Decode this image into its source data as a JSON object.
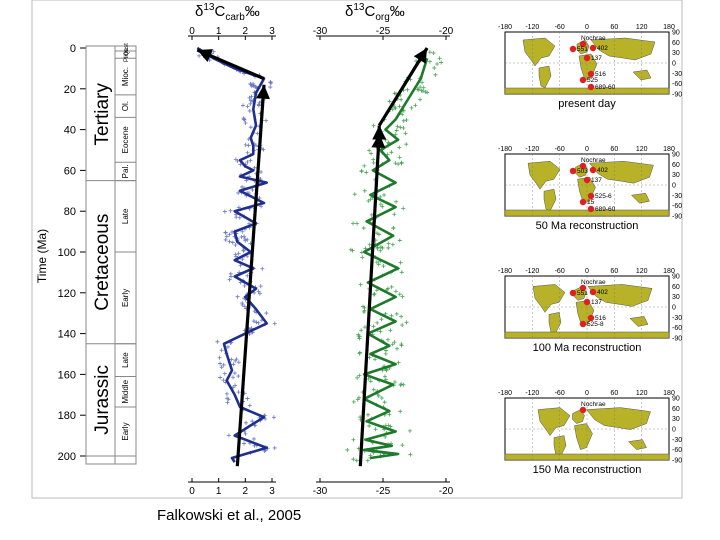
{
  "citation": "Falkowski et al., 2005",
  "colors": {
    "carb_line": "#1f2f8f",
    "carb_points": "#6a78c8",
    "org_line": "#1d7a2a",
    "org_points": "#49a455",
    "land": "#b8b228",
    "site": "#e02020",
    "trend_arrow": "#000000"
  },
  "chart_data": [
    {
      "type": "line",
      "title": "δ13Ccarb‰",
      "title_parts": {
        "delta": "δ",
        "sup": "13",
        "base": "C",
        "sub": "carb",
        "unit": "‰"
      },
      "ylabel": "Time (Ma)",
      "ylim": [
        0,
        200
      ],
      "yticks": [
        0,
        20,
        40,
        60,
        80,
        100,
        120,
        140,
        160,
        180,
        200
      ],
      "xlim": [
        0,
        3
      ],
      "xticks": [
        0,
        1,
        2,
        3
      ],
      "stratigraphy": {
        "eras": [
          {
            "name": "Tertiary",
            "top": 0,
            "base": 65
          },
          {
            "name": "Cretaceous",
            "top": 65,
            "base": 145
          },
          {
            "name": "Jurassic",
            "top": 145,
            "base": 200
          }
        ],
        "epochs": [
          {
            "name": "Qest",
            "top": 0,
            "base": 1.5
          },
          {
            "name": "Plioc.",
            "top": 1.5,
            "base": 5
          },
          {
            "name": "Mioc.",
            "top": 5,
            "base": 23
          },
          {
            "name": "Ol.",
            "top": 23,
            "base": 34
          },
          {
            "name": "Eocene",
            "top": 34,
            "base": 56
          },
          {
            "name": "Pal.",
            "top": 56,
            "base": 65
          },
          {
            "name": "Late",
            "top": 65,
            "base": 100
          },
          {
            "name": "Early",
            "top": 100,
            "base": 145
          },
          {
            "name": "Late",
            "top": 145,
            "base": 161
          },
          {
            "name": "Middle",
            "top": 161,
            "base": 176
          },
          {
            "name": "Early",
            "top": 176,
            "base": 200
          }
        ]
      },
      "series": [
        {
          "name": "δ13Ccarb smoothed",
          "x": [
            0.2,
            0.8,
            1.6,
            2.7,
            2.4,
            2.3,
            2.4,
            2.2,
            2.3,
            2.3,
            1.8,
            2.0,
            2.3,
            1.8,
            2.8,
            1.8,
            2.7,
            1.6,
            2.4,
            1.6,
            1.7,
            2.2,
            1.6,
            2.3,
            1.6,
            2.4,
            2.0,
            2.4,
            2.8,
            2.0,
            1.2,
            1.3,
            1.5,
            1.3,
            1.6,
            1.8,
            2.7,
            2.2,
            1.6,
            2.2,
            2.8,
            2.0,
            1.5,
            1.6
          ],
          "y": [
            0,
            5,
            10,
            15,
            22,
            30,
            38,
            44,
            48,
            52,
            55,
            58,
            60,
            63,
            66,
            70,
            76,
            80,
            86,
            90,
            95,
            100,
            104,
            108,
            112,
            118,
            122,
            128,
            135,
            140,
            145,
            150,
            158,
            163,
            170,
            176,
            181,
            185,
            190,
            193,
            196,
            199,
            201,
            203
          ]
        },
        {
          "name": "trend",
          "type": "arrow",
          "x": [
            1.7,
            2.7,
            1.6,
            2.7,
            0.2
          ],
          "y": [
            205,
            18,
            null,
            15,
            1
          ]
        }
      ]
    },
    {
      "type": "line",
      "title": "δ13Corg‰",
      "title_parts": {
        "delta": "δ",
        "sup": "13",
        "base": "C",
        "sub": "org",
        "unit": "‰"
      },
      "ylim": [
        0,
        200
      ],
      "xlim": [
        -30,
        -20
      ],
      "xticks": [
        -30,
        -25,
        -20
      ],
      "series": [
        {
          "name": "δ13Corg smoothed",
          "x": [
            -21.5,
            -22.0,
            -23.0,
            -24.0,
            -24.8,
            -23.8,
            -25.2,
            -24.5,
            -25.8,
            -24.0,
            -26.0,
            -24.0,
            -26.3,
            -24.2,
            -26.5,
            -23.8,
            -26.2,
            -24.0,
            -26.0,
            -24.0,
            -26.2,
            -24.5,
            -26.0,
            -24.0,
            -26.5,
            -24.2,
            -26.5,
            -24.5,
            -26.3,
            -24.0,
            -26.4,
            -24.3,
            -26.5,
            -23.8,
            -26.0
          ],
          "y": [
            5,
            15,
            25,
            35,
            40,
            45,
            50,
            55,
            60,
            66,
            72,
            78,
            85,
            92,
            100,
            108,
            115,
            122,
            128,
            134,
            140,
            146,
            150,
            155,
            160,
            165,
            172,
            178,
            183,
            188,
            192,
            195,
            197,
            199,
            201
          ]
        },
        {
          "name": "trend",
          "type": "arrow",
          "x": [
            -26.8,
            -25.3,
            -25.3,
            -21.5
          ],
          "y": [
            205,
            42,
            38,
            0
          ]
        }
      ]
    }
  ],
  "maps": [
    {
      "caption": "present day",
      "x_ticks": [
        "-180",
        "-120",
        "-60",
        "0",
        "60",
        "120",
        "180"
      ],
      "y_ticks": [
        "90",
        "60",
        "30",
        "0",
        "-30",
        "-60",
        "-90"
      ],
      "sites": [
        "Nochrae",
        "402",
        "551",
        "137",
        "516",
        "525",
        "689-60"
      ]
    },
    {
      "caption": "50 Ma reconstruction",
      "x_ticks": [
        "-180",
        "-120",
        "-60",
        "0",
        "60",
        "120",
        "180"
      ],
      "y_ticks": [
        "90",
        "60",
        "30",
        "0",
        "-30",
        "-60",
        "-90"
      ],
      "sites": [
        "Nochrae",
        "402",
        "503",
        "137",
        "525-6",
        "15",
        "689-60"
      ]
    },
    {
      "caption": "100 Ma reconstruction",
      "x_ticks": [
        "-180",
        "-120",
        "-60",
        "0",
        "60",
        "120",
        "180"
      ],
      "y_ticks": [
        "90",
        "60",
        "30",
        "0",
        "-30",
        "-60",
        "-90"
      ],
      "sites": [
        "Nochrae",
        "402",
        "551",
        "137",
        "516",
        "525-8"
      ]
    },
    {
      "caption": "150 Ma reconstruction",
      "x_ticks": [
        "-180",
        "-120",
        "-60",
        "0",
        "60",
        "120",
        "180"
      ],
      "y_ticks": [
        "90",
        "60",
        "30",
        "0",
        "-30",
        "-60",
        "-90"
      ],
      "sites": [
        "Nochrae"
      ]
    }
  ]
}
